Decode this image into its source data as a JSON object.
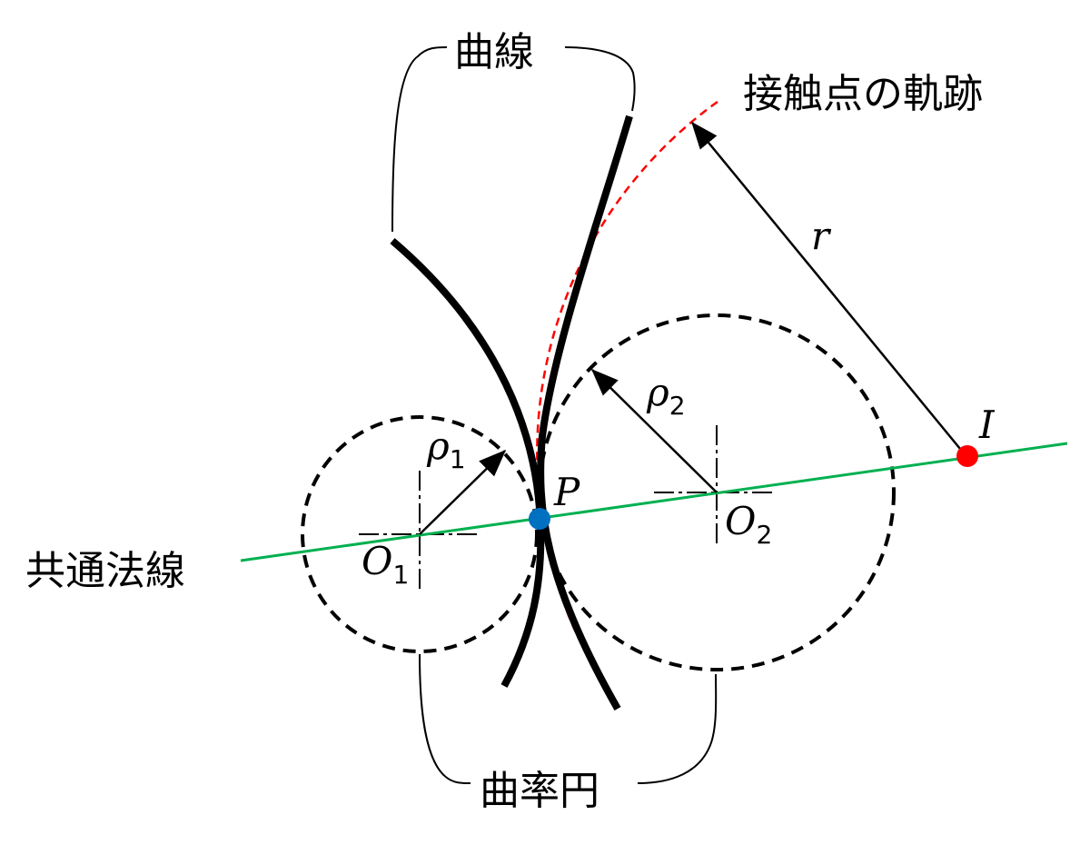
{
  "labels": {
    "curve": "曲線",
    "contact_locus": "接触点の軌跡",
    "common_normal": "共通法線",
    "curvature_circle": "曲率円",
    "r": "r",
    "rho": "ρ",
    "rho1_sub": "1",
    "rho2_sub": "2",
    "P": "P",
    "O": "O",
    "O1_sub": "1",
    "O2_sub": "2",
    "I": "I"
  },
  "colors": {
    "curve": "#000000",
    "common_normal": "#00b050",
    "contact_locus": "#ff0000",
    "point_P": "#0070c0",
    "point_I": "#ff0000"
  }
}
